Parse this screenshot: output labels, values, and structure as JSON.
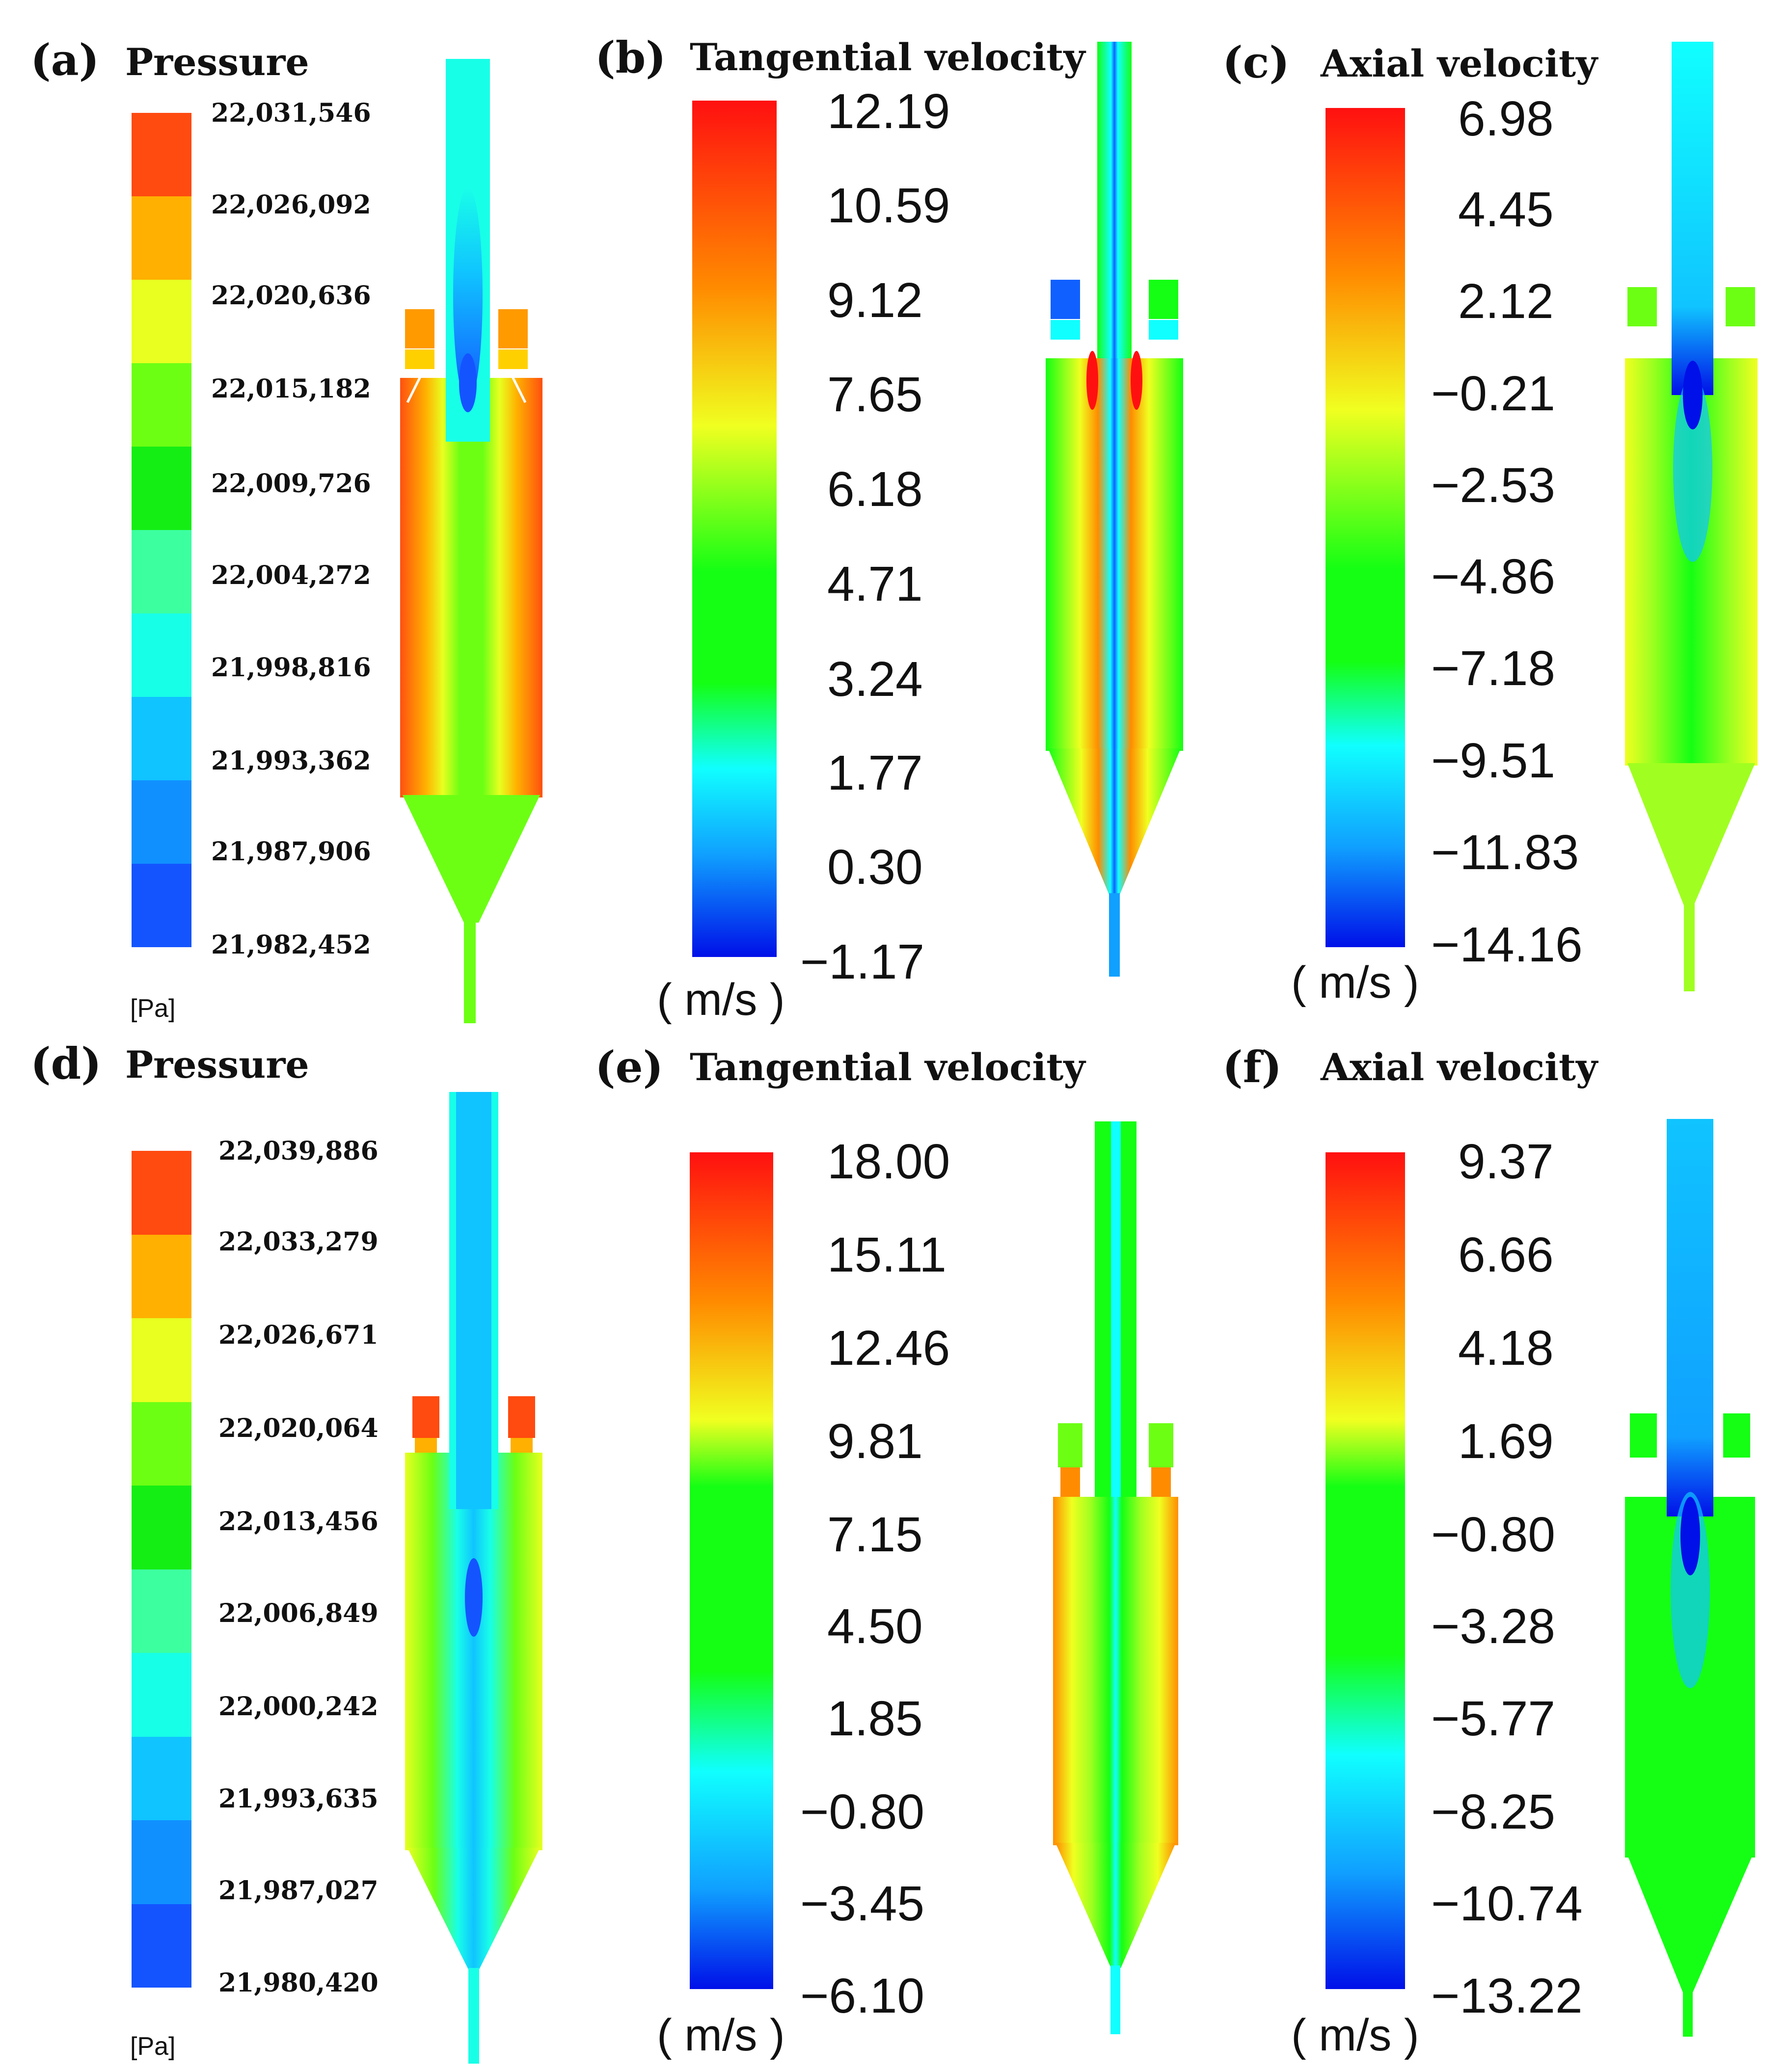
{
  "figure": {
    "panels": [
      {
        "id": "a",
        "label": "(a)",
        "title": "Pressure",
        "unit": "[Pa]",
        "legend_style": "discrete",
        "ticks": [
          "22,031,546",
          "22,026,092",
          "22,020,636",
          "22,015,182",
          "22,009,726",
          "22,004,272",
          "21,998,816",
          "21,993,362",
          "21,987,906",
          "21,982,452"
        ],
        "colors": [
          "#ff4a10",
          "#ffb000",
          "#e8ff20",
          "#6cff14",
          "#14ee14",
          "#3cffa0",
          "#18ffe8",
          "#10c4ff",
          "#1090ff",
          "#1454ff"
        ]
      },
      {
        "id": "b",
        "label": "(b)",
        "title": "Tangential velocity",
        "unit": "( m/s )",
        "legend_style": "continuous",
        "ticks": [
          "12.19",
          "10.59",
          "9.12",
          "7.65",
          "6.18",
          "4.71",
          "3.24",
          "1.77",
          "0.30",
          "−1.17"
        ]
      },
      {
        "id": "c",
        "label": "(c)",
        "title": "Axial velocity",
        "unit": "( m/s )",
        "legend_style": "continuous",
        "ticks": [
          "6.98",
          "4.45",
          "2.12",
          "−0.21",
          "−2.53",
          "−4.86",
          "−7.18",
          "−9.51",
          "−11.83",
          "−14.16"
        ]
      },
      {
        "id": "d",
        "label": "(d)",
        "title": "Pressure",
        "unit": "[Pa]",
        "legend_style": "discrete",
        "ticks": [
          "22,039,886",
          "22,033,279",
          "22,026,671",
          "22,020,064",
          "22,013,456",
          "22,006,849",
          "22,000,242",
          "21,993,635",
          "21,987,027",
          "21,980,420"
        ],
        "colors": [
          "#ff4a10",
          "#ffb000",
          "#e8ff20",
          "#6cff14",
          "#14ee14",
          "#3cffa0",
          "#18ffe8",
          "#10c4ff",
          "#1090ff",
          "#1454ff"
        ]
      },
      {
        "id": "e",
        "label": "(e)",
        "title": "Tangential velocity",
        "unit": "( m/s )",
        "legend_style": "continuous",
        "ticks": [
          "18.00",
          "15.11",
          "12.46",
          "9.81",
          "7.15",
          "4.50",
          "1.85",
          "−0.80",
          "−3.45",
          "−6.10"
        ]
      },
      {
        "id": "f",
        "label": "(f)",
        "title": "Axial velocity",
        "unit": "( m/s )",
        "legend_style": "continuous",
        "ticks": [
          "9.37",
          "6.66",
          "4.18",
          "1.69",
          "−0.80",
          "−3.28",
          "−5.77",
          "−8.25",
          "−10.74",
          "−13.22"
        ]
      }
    ],
    "colors": {
      "red": "#ff1010",
      "orange": "#ff8c00",
      "yellow": "#f0ff20",
      "green": "#14ff14",
      "cyan": "#10ffff",
      "blue": "#1060ff",
      "darkblue": "#0010e8"
    }
  }
}
